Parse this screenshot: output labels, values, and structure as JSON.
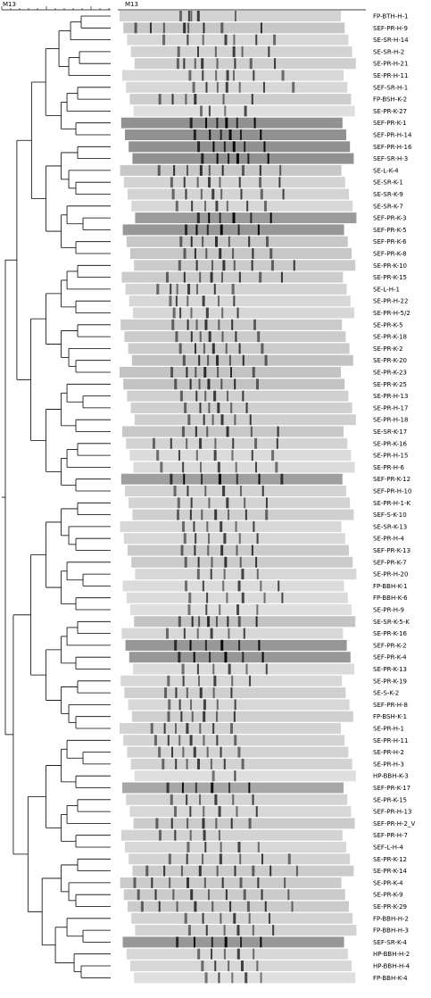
{
  "header": {
    "scale_label": "M13",
    "gel_label": "M13"
  },
  "samples": [
    {
      "name": "FP-BTH-H-1",
      "bands": [
        0.27,
        0.31,
        0.32,
        0.35,
        0.52
      ],
      "tone": 0.12
    },
    {
      "name": "SEF-PR-H-9",
      "bands": [
        0.05,
        0.12,
        0.18,
        0.27,
        0.29,
        0.36,
        0.44,
        0.62
      ],
      "tone": 0.18
    },
    {
      "name": "SE-SR-H-14",
      "bands": [
        0.16,
        0.27,
        0.34,
        0.44,
        0.48,
        0.58,
        0.66
      ],
      "tone": 0.1
    },
    {
      "name": "SE-SR-H-2",
      "bands": [
        0.21,
        0.3,
        0.38,
        0.46,
        0.5,
        0.62
      ],
      "tone": 0.12
    },
    {
      "name": "SE-PR-H-21",
      "bands": [
        0.19,
        0.22,
        0.27,
        0.3,
        0.37,
        0.45,
        0.52,
        0.63
      ],
      "tone": 0.14
    },
    {
      "name": "SE-PR-H-11",
      "bands": [
        0.3,
        0.36,
        0.42,
        0.47,
        0.5,
        0.59,
        0.72
      ],
      "tone": 0.1
    },
    {
      "name": "SEF-SR-H-1",
      "bands": [
        0.3,
        0.36,
        0.41,
        0.45,
        0.51,
        0.62,
        0.75
      ],
      "tone": 0.1
    },
    {
      "name": "FP-BSH-K-2",
      "bands": [
        0.13,
        0.19,
        0.25,
        0.29,
        0.42,
        0.55
      ],
      "tone": 0.15
    },
    {
      "name": "SE-PR-K-27",
      "bands": [
        0.3,
        0.34,
        0.41,
        0.5
      ],
      "tone": 0.06
    },
    {
      "name": "SEF-PR-K-1",
      "bands": [
        0.31,
        0.38,
        0.43,
        0.47,
        0.52,
        0.6
      ],
      "tone": 0.45
    },
    {
      "name": "SEF-PR-H-14",
      "bands": [
        0.31,
        0.38,
        0.43,
        0.47,
        0.52,
        0.61
      ],
      "tone": 0.45
    },
    {
      "name": "SEF-PR-H-16",
      "bands": [
        0.31,
        0.38,
        0.43,
        0.47,
        0.52,
        0.61
      ],
      "tone": 0.45
    },
    {
      "name": "SEF-SR-H-3",
      "bands": [
        0.31,
        0.38,
        0.43,
        0.47,
        0.52,
        0.61
      ],
      "tone": 0.45
    },
    {
      "name": "SE-L-K-4",
      "bands": [
        0.17,
        0.24,
        0.3,
        0.36,
        0.4,
        0.46,
        0.55,
        0.63,
        0.72
      ],
      "tone": 0.18
    },
    {
      "name": "SE-SR-K-1",
      "bands": [
        0.21,
        0.27,
        0.33,
        0.38,
        0.43,
        0.52,
        0.61,
        0.7
      ],
      "tone": 0.12
    },
    {
      "name": "SE-SR-K-9",
      "bands": [
        0.2,
        0.26,
        0.33,
        0.38,
        0.42,
        0.51,
        0.6,
        0.7
      ],
      "tone": 0.12
    },
    {
      "name": "SE-SR-K-7",
      "bands": [
        0.2,
        0.27,
        0.33,
        0.38,
        0.43,
        0.52,
        0.6
      ],
      "tone": 0.1
    },
    {
      "name": "SEF-PR-K-3",
      "bands": [
        0.28,
        0.33,
        0.38,
        0.44,
        0.52,
        0.61
      ],
      "tone": 0.4
    },
    {
      "name": "SEF-PR-K-5",
      "bands": [
        0.28,
        0.33,
        0.38,
        0.44,
        0.52,
        0.61
      ],
      "tone": 0.42
    },
    {
      "name": "SEF-PR-K-6",
      "bands": [
        0.24,
        0.29,
        0.34,
        0.4,
        0.46,
        0.55,
        0.63
      ],
      "tone": 0.18
    },
    {
      "name": "SEF-PR-K-8",
      "bands": [
        0.24,
        0.29,
        0.34,
        0.4,
        0.46,
        0.55,
        0.63
      ],
      "tone": 0.18
    },
    {
      "name": "SE-PR-K-10",
      "bands": [
        0.2,
        0.28,
        0.35,
        0.4,
        0.45,
        0.53,
        0.62,
        0.72
      ],
      "tone": 0.16
    },
    {
      "name": "SE-PR-K-15",
      "bands": [
        0.2,
        0.28,
        0.35,
        0.4,
        0.45,
        0.53,
        0.62,
        0.72
      ],
      "tone": 0.16
    },
    {
      "name": "SE-L-H-1",
      "bands": [
        0.14,
        0.2,
        0.23,
        0.28,
        0.32,
        0.4,
        0.48
      ],
      "tone": 0.12
    },
    {
      "name": "SE-PR-H-22",
      "bands": [
        0.18,
        0.21,
        0.26,
        0.33,
        0.4,
        0.47
      ],
      "tone": 0.1
    },
    {
      "name": "SE-PR-H-5/2",
      "bands": [
        0.18,
        0.21,
        0.26,
        0.33,
        0.4,
        0.47
      ],
      "tone": 0.1
    },
    {
      "name": "SE-PR-K-5",
      "bands": [
        0.23,
        0.3,
        0.34,
        0.38,
        0.44,
        0.5,
        0.6
      ],
      "tone": 0.16
    },
    {
      "name": "SE-PR-K-18",
      "bands": [
        0.23,
        0.3,
        0.34,
        0.38,
        0.44,
        0.5,
        0.6
      ],
      "tone": 0.16
    },
    {
      "name": "SE-PR-K-2",
      "bands": [
        0.23,
        0.3,
        0.34,
        0.38,
        0.44,
        0.5,
        0.6
      ],
      "tone": 0.16
    },
    {
      "name": "SE-PR-K-20",
      "bands": [
        0.23,
        0.3,
        0.34,
        0.38,
        0.44,
        0.5,
        0.6
      ],
      "tone": 0.2
    },
    {
      "name": "SE-PR-K-23",
      "bands": [
        0.23,
        0.3,
        0.34,
        0.38,
        0.44,
        0.5,
        0.6
      ],
      "tone": 0.2
    },
    {
      "name": "SE-PR-K-25",
      "bands": [
        0.23,
        0.3,
        0.34,
        0.38,
        0.44,
        0.5,
        0.6
      ],
      "tone": 0.2
    },
    {
      "name": "SE-PR-H-13",
      "bands": [
        0.24,
        0.31,
        0.35,
        0.39,
        0.45,
        0.52
      ],
      "tone": 0.14
    },
    {
      "name": "SE-PR-H-17",
      "bands": [
        0.24,
        0.31,
        0.35,
        0.39,
        0.45,
        0.52
      ],
      "tone": 0.14
    },
    {
      "name": "SE-PR-H-18",
      "bands": [
        0.24,
        0.31,
        0.35,
        0.39,
        0.45,
        0.52
      ],
      "tone": 0.14
    },
    {
      "name": "SE-SR-K-17",
      "bands": [
        0.27,
        0.33,
        0.38,
        0.47,
        0.58,
        0.7
      ],
      "tone": 0.18
    },
    {
      "name": "SE-PR-K-16",
      "bands": [
        0.12,
        0.2,
        0.27,
        0.33,
        0.4,
        0.48,
        0.58,
        0.68
      ],
      "tone": 0.12
    },
    {
      "name": "SE-PR-H-15",
      "bands": [
        0.12,
        0.22,
        0.3,
        0.38,
        0.46,
        0.55,
        0.64
      ],
      "tone": 0.08
    },
    {
      "name": "SE-PR-H-6",
      "bands": [
        0.12,
        0.22,
        0.3,
        0.38,
        0.46,
        0.55,
        0.64
      ],
      "tone": 0.08
    },
    {
      "name": "SEF-PR-K-12",
      "bands": [
        0.22,
        0.28,
        0.36,
        0.44,
        0.52,
        0.62,
        0.72
      ],
      "tone": 0.38
    },
    {
      "name": "SEF-PR-H-10",
      "bands": [
        0.22,
        0.28,
        0.36,
        0.44,
        0.52,
        0.62
      ],
      "tone": 0.12
    },
    {
      "name": "SE-PR-H-1-K",
      "bands": [
        0.22,
        0.28,
        0.36,
        0.44,
        0.52,
        0.62
      ],
      "tone": 0.12
    },
    {
      "name": "SEF-S-K-10",
      "bands": [
        0.2,
        0.26,
        0.31,
        0.37,
        0.43,
        0.51,
        0.6
      ],
      "tone": 0.14
    },
    {
      "name": "SE-SR-K-13",
      "bands": [
        0.28,
        0.33,
        0.39,
        0.45,
        0.52,
        0.6
      ],
      "tone": 0.1
    },
    {
      "name": "SE-PR-H-4",
      "bands": [
        0.27,
        0.32,
        0.38,
        0.45,
        0.52,
        0.6
      ],
      "tone": 0.1
    },
    {
      "name": "SEF-PR-K-13",
      "bands": [
        0.24,
        0.3,
        0.36,
        0.42,
        0.49,
        0.56
      ],
      "tone": 0.16
    },
    {
      "name": "SEF-PR-K-7",
      "bands": [
        0.24,
        0.3,
        0.36,
        0.42,
        0.49,
        0.56
      ],
      "tone": 0.16
    },
    {
      "name": "SE-PR-H-20",
      "bands": [
        0.28,
        0.34,
        0.4,
        0.48,
        0.55
      ],
      "tone": 0.1
    },
    {
      "name": "FP-BBH-K-1",
      "bands": [
        0.28,
        0.36,
        0.45,
        0.52,
        0.62,
        0.7
      ],
      "tone": 0.08
    },
    {
      "name": "FP-BBH-K-6",
      "bands": [
        0.28,
        0.36,
        0.45,
        0.52,
        0.62,
        0.7
      ],
      "tone": 0.08
    },
    {
      "name": "SE-PR-H-9",
      "bands": [
        0.26,
        0.34,
        0.4,
        0.48,
        0.57
      ],
      "tone": 0.06
    },
    {
      "name": "SE-SR-K-5-K",
      "bands": [
        0.2,
        0.26,
        0.29,
        0.33,
        0.37,
        0.42,
        0.47,
        0.55
      ],
      "tone": 0.2
    },
    {
      "name": "SE-PR-K-16",
      "bands": [
        0.2,
        0.28,
        0.34,
        0.4,
        0.48,
        0.55
      ],
      "tone": 0.1
    },
    {
      "name": "SEF-PR-K-2",
      "bands": [
        0.22,
        0.29,
        0.36,
        0.43,
        0.51,
        0.6
      ],
      "tone": 0.42
    },
    {
      "name": "SEF-PR-K-4",
      "bands": [
        0.22,
        0.29,
        0.36,
        0.43,
        0.51,
        0.6
      ],
      "tone": 0.42
    },
    {
      "name": "SE-PR-K-13",
      "bands": [
        0.22,
        0.29,
        0.36,
        0.43,
        0.51,
        0.6
      ],
      "tone": 0.08
    },
    {
      "name": "SE-PR-K-19",
      "bands": [
        0.21,
        0.28,
        0.35,
        0.42,
        0.5,
        0.58
      ],
      "tone": 0.1
    },
    {
      "name": "SE-S-K-2",
      "bands": [
        0.18,
        0.23,
        0.28,
        0.34,
        0.4,
        0.48
      ],
      "tone": 0.14
    },
    {
      "name": "SEF-PR-H-8",
      "bands": [
        0.18,
        0.23,
        0.28,
        0.34,
        0.4,
        0.48
      ],
      "tone": 0.1
    },
    {
      "name": "FP-BSH-K-1",
      "bands": [
        0.16,
        0.22,
        0.27,
        0.32,
        0.38,
        0.46
      ],
      "tone": 0.14
    },
    {
      "name": "SE-PR-H-1",
      "bands": [
        0.14,
        0.2,
        0.25,
        0.3,
        0.36,
        0.42,
        0.5
      ],
      "tone": 0.12
    },
    {
      "name": "SE-PR-H-11",
      "bands": [
        0.14,
        0.2,
        0.25,
        0.3,
        0.36,
        0.42,
        0.5
      ],
      "tone": 0.12
    },
    {
      "name": "SE-PR-H-2",
      "bands": [
        0.14,
        0.2,
        0.25,
        0.3,
        0.36,
        0.42,
        0.5
      ],
      "tone": 0.12
    },
    {
      "name": "SE-PR-H-3",
      "bands": [
        0.14,
        0.2,
        0.25,
        0.3,
        0.36,
        0.42,
        0.5
      ],
      "tone": 0.12
    },
    {
      "name": "HP-BBH-K-3",
      "bands": [
        0.35,
        0.45
      ],
      "tone": 0.06
    },
    {
      "name": "SEF-PR-K-17",
      "bands": [
        0.2,
        0.27,
        0.33,
        0.4,
        0.48,
        0.57
      ],
      "tone": 0.34
    },
    {
      "name": "SE-PR-K-15",
      "bands": [
        0.2,
        0.27,
        0.33,
        0.4,
        0.48,
        0.57
      ],
      "tone": 0.12
    },
    {
      "name": "SEF-PR-H-13",
      "bands": [
        0.2,
        0.27,
        0.33,
        0.4,
        0.48,
        0.57
      ],
      "tone": 0.1
    },
    {
      "name": "SEF-PR-H-2_V",
      "bands": [
        0.1,
        0.17,
        0.24,
        0.31,
        0.37,
        0.44,
        0.52
      ],
      "tone": 0.16
    },
    {
      "name": "SEF-PR-H-7",
      "bands": [
        0.17,
        0.24,
        0.31,
        0.37,
        0.44
      ],
      "tone": 0.12
    },
    {
      "name": "SEF-L-H-4",
      "bands": [
        0.28,
        0.36,
        0.43,
        0.51,
        0.6
      ],
      "tone": 0.1
    },
    {
      "name": "SE-PR-K-12",
      "bands": [
        0.18,
        0.26,
        0.33,
        0.41,
        0.5,
        0.6,
        0.72
      ],
      "tone": 0.12
    },
    {
      "name": "SE-PR-K-14",
      "bands": [
        0.06,
        0.14,
        0.22,
        0.3,
        0.38,
        0.46,
        0.54,
        0.62,
        0.74
      ],
      "tone": 0.16
    },
    {
      "name": "SE-PR-K-4",
      "bands": [
        0.06,
        0.14,
        0.22,
        0.3,
        0.38,
        0.46,
        0.54,
        0.62,
        0.74
      ],
      "tone": 0.16
    },
    {
      "name": "SE-PR-K-9",
      "bands": [
        0.06,
        0.14,
        0.22,
        0.3,
        0.38,
        0.46,
        0.54,
        0.62,
        0.74
      ],
      "tone": 0.16
    },
    {
      "name": "SE-PR-K-29",
      "bands": [
        0.06,
        0.14,
        0.22,
        0.3,
        0.38,
        0.46,
        0.54,
        0.62,
        0.74
      ],
      "tone": 0.16
    },
    {
      "name": "FP-BBH-H-2",
      "bands": [
        0.24,
        0.32,
        0.4,
        0.46,
        0.53,
        0.62
      ],
      "tone": 0.12
    },
    {
      "name": "FP-BBH-H-3",
      "bands": [
        0.24,
        0.32,
        0.4,
        0.46,
        0.53,
        0.62
      ],
      "tone": 0.12
    },
    {
      "name": "SEF-SR-K-4",
      "bands": [
        0.24,
        0.32,
        0.4,
        0.46,
        0.53,
        0.62
      ],
      "tone": 0.42
    },
    {
      "name": "HP-BBH-H-2",
      "bands": [
        0.32,
        0.38,
        0.44,
        0.5,
        0.57
      ],
      "tone": 0.1
    },
    {
      "name": "HP-BBH-H-4",
      "bands": [
        0.32,
        0.38,
        0.44,
        0.5,
        0.57
      ],
      "tone": 0.1
    },
    {
      "name": "FP-BBH-K-4",
      "bands": [
        0.32,
        0.38,
        0.44,
        0.5,
        0.57
      ],
      "tone": 0.06
    }
  ]
}
